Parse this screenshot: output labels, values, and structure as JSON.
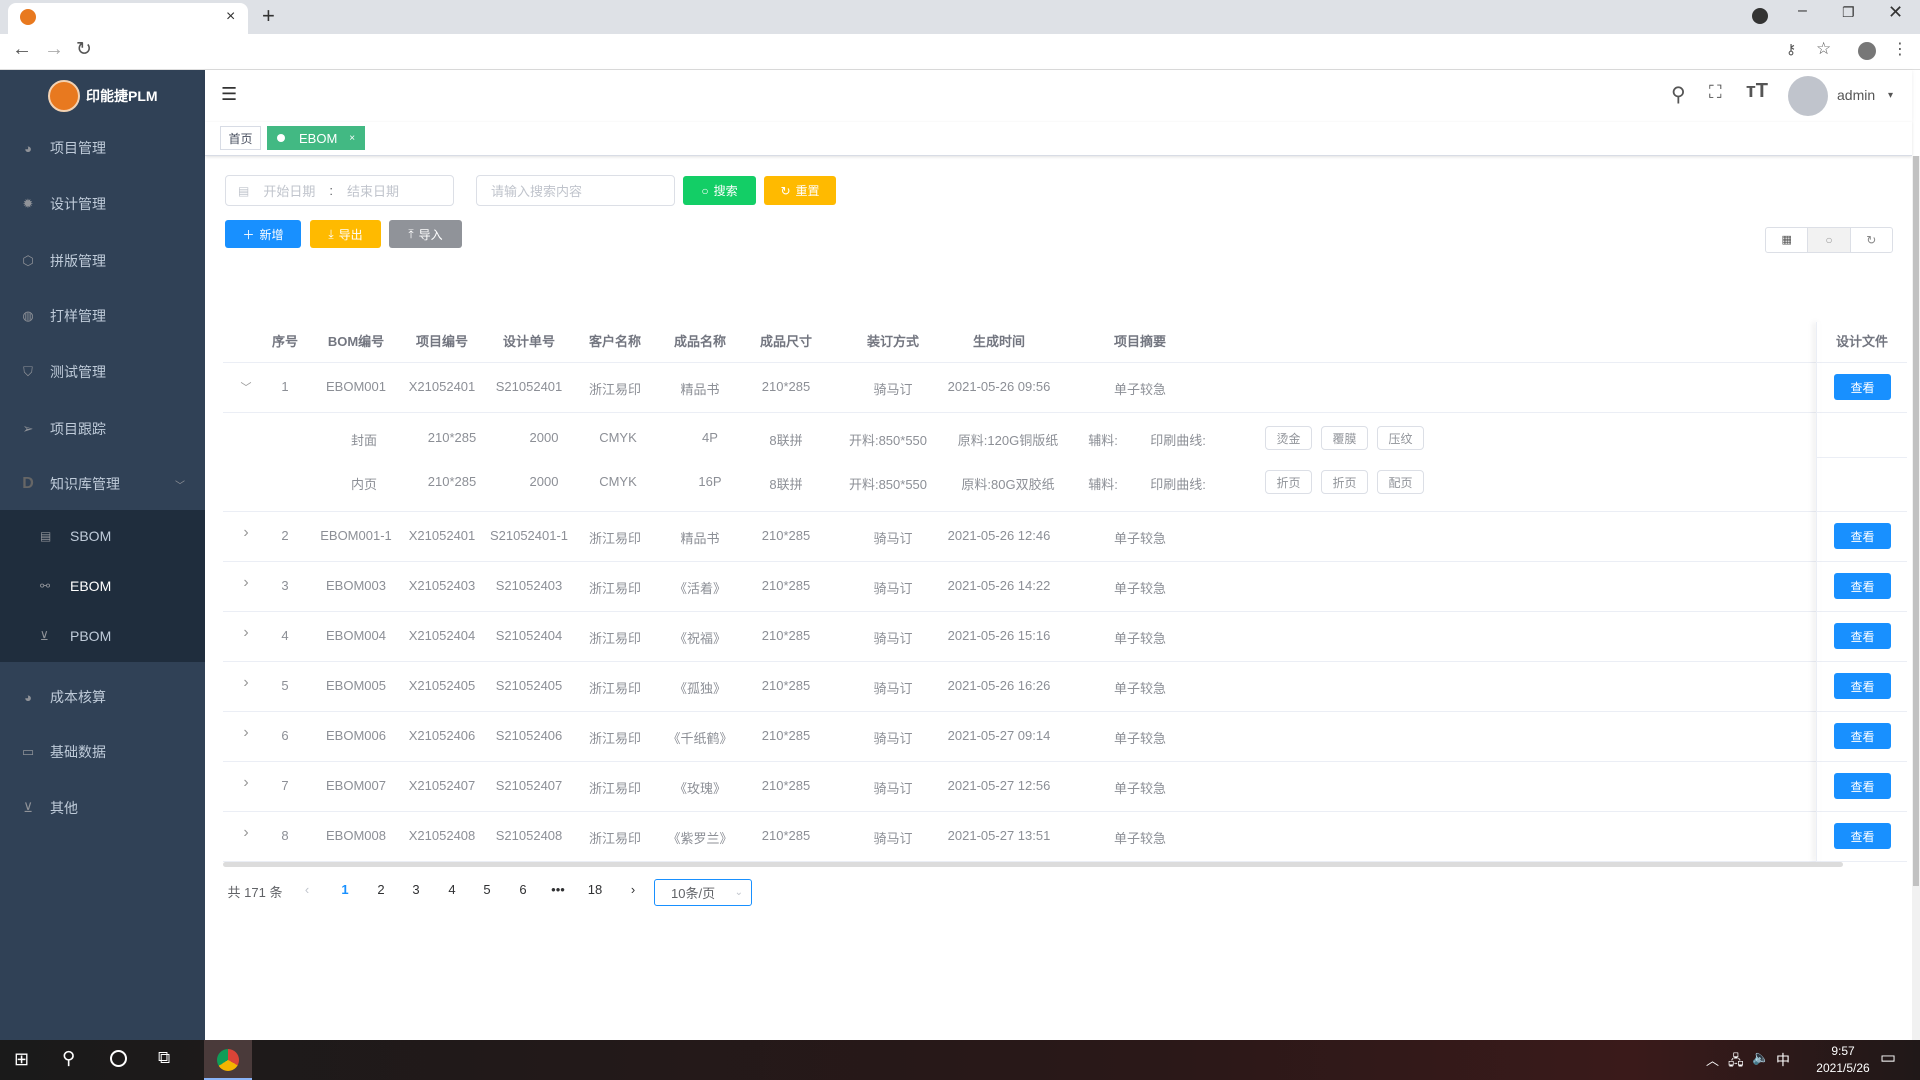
{
  "browser": {
    "tab_close": "×",
    "new_tab": "+"
  },
  "app": {
    "logo_text": "印能捷PLM",
    "user": "admin"
  },
  "sidebar": {
    "items": [
      {
        "label": "项目管理",
        "icon": "dashboard-icon"
      },
      {
        "label": "设计管理",
        "icon": "gear-icon"
      },
      {
        "label": "拼版管理",
        "icon": "cube-icon"
      },
      {
        "label": "打样管理",
        "icon": "palette-icon"
      },
      {
        "label": "测试管理",
        "icon": "shield-icon"
      },
      {
        "label": "项目跟踪",
        "icon": "send-icon"
      },
      {
        "label": "知识库管理",
        "icon": "d-icon"
      }
    ],
    "subitems": [
      {
        "label": "SBOM",
        "icon": "document-gear-icon"
      },
      {
        "label": "EBOM",
        "icon": "share-icon"
      },
      {
        "label": "PBOM",
        "icon": "monitor-chart-icon"
      }
    ],
    "items_after": [
      {
        "label": "成本核算",
        "icon": "dashboard-icon"
      },
      {
        "label": "基础数据",
        "icon": "monitor-icon"
      },
      {
        "label": "其他",
        "icon": "monitor-chart-icon"
      }
    ]
  },
  "tags": {
    "home": "首页",
    "active": "EBOM",
    "close": "×",
    "active_color": "#42b983"
  },
  "filters": {
    "start_placeholder": "开始日期",
    "separator": ":",
    "end_placeholder": "结束日期",
    "search_placeholder": "请输入搜索内容",
    "search": "搜索",
    "reset": "重置"
  },
  "actions": {
    "add": "新增",
    "export": "导出",
    "import": "导入"
  },
  "colors": {
    "search": "#13ce66",
    "reset": "#ffba00",
    "add": "#1890ff",
    "import": "#909399",
    "sidebar": "#304156"
  },
  "table": {
    "columns": [
      "序号",
      "BOM编号",
      "项目编号",
      "设计单号",
      "客户名称",
      "成品名称",
      "成品尺寸",
      "装订方式",
      "生成时间",
      "项目摘要",
      "设计文件"
    ],
    "view_label": "查看",
    "rows": [
      [
        "1",
        "EBOM001",
        "X21052401",
        "S21052401",
        "浙江易印",
        "精品书",
        "210*285",
        "骑马订",
        "2021-05-26 09:56",
        "单子较急"
      ],
      [
        "2",
        "EBOM001-1",
        "X21052401",
        "S21052401-1",
        "浙江易印",
        "精品书",
        "210*285",
        "骑马订",
        "2021-05-26 12:46",
        "单子较急"
      ],
      [
        "3",
        "EBOM003",
        "X21052403",
        "S21052403",
        "浙江易印",
        "《活着》",
        "210*285",
        "骑马订",
        "2021-05-26 14:22",
        "单子较急"
      ],
      [
        "4",
        "EBOM004",
        "X21052404",
        "S21052404",
        "浙江易印",
        "《祝福》",
        "210*285",
        "骑马订",
        "2021-05-26 15:16",
        "单子较急"
      ],
      [
        "5",
        "EBOM005",
        "X21052405",
        "S21052405",
        "浙江易印",
        "《孤独》",
        "210*285",
        "骑马订",
        "2021-05-26 16:26",
        "单子较急"
      ],
      [
        "6",
        "EBOM006",
        "X21052406",
        "S21052406",
        "浙江易印",
        "《千纸鹤》",
        "210*285",
        "骑马订",
        "2021-05-27 09:14",
        "单子较急"
      ],
      [
        "7",
        "EBOM007",
        "X21052407",
        "S21052407",
        "浙江易印",
        "《玫瑰》",
        "210*285",
        "骑马订",
        "2021-05-27 12:56",
        "单子较急"
      ],
      [
        "8",
        "EBOM008",
        "X21052408",
        "S21052408",
        "浙江易印",
        "《紫罗兰》",
        "210*285",
        "骑马订",
        "2021-05-27 13:51",
        "单子较急"
      ]
    ],
    "expanded_row": 0,
    "sub_rows": [
      {
        "cells": [
          "封面",
          "210*285",
          "2000",
          "CMYK",
          "4P",
          "8联拼",
          "开料:850*550",
          "原料:120G铜版纸",
          "辅料:",
          "印刷曲线:"
        ],
        "tags": [
          "烫金",
          "覆膜",
          "压纹"
        ]
      },
      {
        "cells": [
          "内页",
          "210*285",
          "2000",
          "CMYK",
          "16P",
          "8联拼",
          "开料:850*550",
          "原料:80G双胶纸",
          "辅料:",
          "印刷曲线:"
        ],
        "tags": [
          "折页",
          "折页",
          "配页"
        ]
      }
    ]
  },
  "pagination": {
    "total": "共 171 条",
    "pages": [
      "1",
      "2",
      "3",
      "4",
      "5",
      "6",
      "•••",
      "18"
    ],
    "current": "1",
    "page_size": "10条/页"
  },
  "taskbar": {
    "time": "9:57",
    "date": "2021/5/26",
    "ime": "中"
  }
}
